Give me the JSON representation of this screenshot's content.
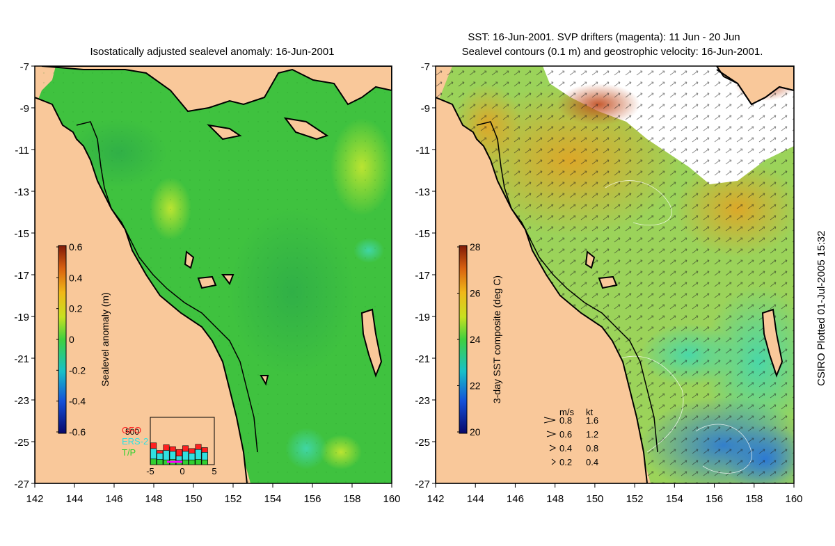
{
  "left_panel": {
    "title": "Isostatically adjusted sealevel anomaly: 16-Jun-2001",
    "colorbar": {
      "label": "Sealevel anomaly (m)",
      "ticks": [
        "0.6",
        "0.4",
        "0.2",
        "0",
        "-0.2",
        "-0.4",
        "-0.6"
      ]
    },
    "inset": {
      "ymax_label": "500",
      "x_ticks": [
        "-5",
        "0",
        "5"
      ],
      "legend": [
        {
          "name": "GFO",
          "color": "#ff2020"
        },
        {
          "name": "ERS-2",
          "color": "#30e0e0"
        },
        {
          "name": "T/P",
          "color": "#30d030"
        }
      ],
      "bars": [
        {
          "x": -4.5,
          "gfo": 230,
          "ers": 170,
          "tp": 60
        },
        {
          "x": -3.5,
          "gfo": 150,
          "ers": 120,
          "tp": 55
        },
        {
          "x": -2.5,
          "gfo": 210,
          "ers": 150,
          "tp": 50
        },
        {
          "x": -1.5,
          "gfo": 190,
          "ers": 140,
          "tp": 55
        },
        {
          "x": -0.5,
          "gfo": 160,
          "ers": 90,
          "tp": 45
        },
        {
          "x": 0.5,
          "gfo": 200,
          "ers": 140,
          "tp": 50
        },
        {
          "x": 1.5,
          "gfo": 170,
          "ers": 120,
          "tp": 50
        },
        {
          "x": 2.5,
          "gfo": 215,
          "ers": 160,
          "tp": 55
        },
        {
          "x": 3.5,
          "gfo": 180,
          "ers": 130,
          "tp": 50
        }
      ]
    }
  },
  "right_panel": {
    "title_line1": "SST: 16-Jun-2001. SVP drifters (magenta): 11 Jun - 20 Jun",
    "title_line2": "Sealevel contours (0.1 m) and geostrophic velocity: 16-Jun-2001.",
    "colorbar": {
      "label": "3-day SST composite (deg C)",
      "ticks": [
        "28",
        "26",
        "24",
        "22",
        "20"
      ]
    },
    "speed_legend": {
      "header_ms": "m/s",
      "header_kt": "kt",
      "rows": [
        {
          "ms": "0.8",
          "kt": "1.6"
        },
        {
          "ms": "0.6",
          "kt": "1.2"
        },
        {
          "ms": "0.4",
          "kt": "0.8"
        },
        {
          "ms": "0.2",
          "kt": "0.4"
        }
      ]
    }
  },
  "axes": {
    "lat_ticks": [
      "-7",
      "-9",
      "-11",
      "-13",
      "-15",
      "-17",
      "-19",
      "-21",
      "-23",
      "-25",
      "-27"
    ],
    "lon_ticks": [
      "142",
      "144",
      "146",
      "148",
      "150",
      "152",
      "154",
      "156",
      "158",
      "160"
    ],
    "lat_range": [
      -27,
      -7
    ],
    "lon_range": [
      142,
      160
    ]
  },
  "credit": "CSIRO Plotted 01-Jul-2005 15:32",
  "colors": {
    "land": "#f9c89a",
    "sla_ocean": "#3fc23f",
    "sst_ocean": "#9bd35a",
    "coast": "#000000"
  }
}
